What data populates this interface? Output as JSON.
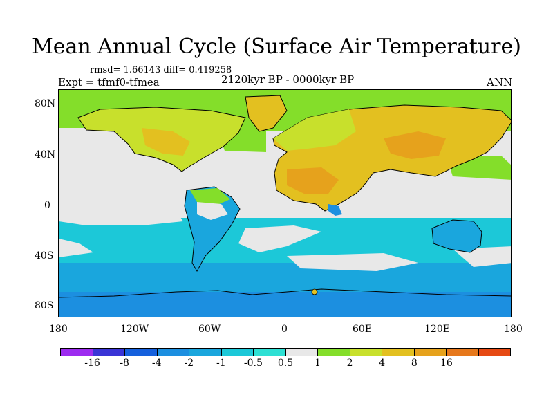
{
  "title": "Mean Annual Cycle (Surface Air Temperature)",
  "stats_line": "rmsd= 1.66143 diff= 0.419258",
  "experiment": "Expt = tfmf0-tfmea",
  "period": "2120kyr BP - 0000kyr BP",
  "season": "ANN",
  "lat_ticks": [
    {
      "label": "80N",
      "lat": 80
    },
    {
      "label": "40N",
      "lat": 40
    },
    {
      "label": "0",
      "lat": 0
    },
    {
      "label": "40S",
      "lat": -40
    },
    {
      "label": "80S",
      "lat": -80
    }
  ],
  "lon_ticks": [
    {
      "label": "180",
      "lon": -180
    },
    {
      "label": "120W",
      "lon": -120
    },
    {
      "label": "60W",
      "lon": -60
    },
    {
      "label": "0",
      "lon": 0
    },
    {
      "label": "60E",
      "lon": 60
    },
    {
      "label": "120E",
      "lon": 120
    },
    {
      "label": "180",
      "lon": 180
    }
  ],
  "colorbar": {
    "colors": [
      "#9d2bf0",
      "#3a34d6",
      "#1560dd",
      "#1c8fe0",
      "#1aa6dd",
      "#1cc8d8",
      "#2ee0d4",
      "#e8e8e8",
      "#84de2a",
      "#c8e02c",
      "#e3c020",
      "#e6a21c",
      "#e6781c",
      "#e64a14"
    ],
    "labels": [
      "-16",
      "-8",
      "-4",
      "-2",
      "-1",
      "-0.5",
      "0.5",
      "1",
      "2",
      "4",
      "8",
      "16"
    ]
  }
}
